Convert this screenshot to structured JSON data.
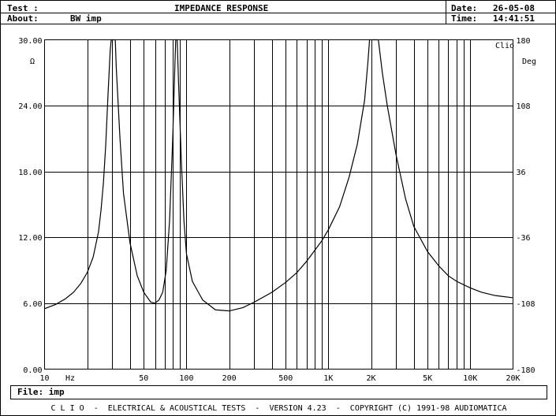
{
  "header": {
    "test_label": "Test :",
    "test_title": "IMPEDANCE RESPONSE",
    "about_label": "About:",
    "about_value": "BW imp",
    "date_label": "Date:",
    "date_value": "26-05-08",
    "time_label": "Time:",
    "time_value": "14:41:51"
  },
  "file": {
    "label": "File:",
    "value": "imp"
  },
  "footer": {
    "text": "C L I O  -  ELECTRICAL & ACOUSTICAL TESTS  -  VERSION 4.23  -  COPYRIGHT (C) 1991-98 AUDIOMATICA"
  },
  "chart_data": {
    "type": "line",
    "title": "IMPEDANCE RESPONSE",
    "brand_label": "Clio",
    "xscale": "log",
    "xlim": [
      10,
      20000
    ],
    "ylim": [
      0,
      30
    ],
    "y2lim": [
      -180,
      180
    ],
    "ylabel": "Ω",
    "y2label": "Deg",
    "xunit_label": "Hz",
    "grid": true,
    "yticks": [
      "0.00",
      "6.00",
      "12.00",
      "18.00",
      "24.00",
      "30.00"
    ],
    "y2ticks": [
      "-180",
      "-108",
      "-36",
      "36",
      "108",
      "180"
    ],
    "xticks": [
      {
        "value": 10,
        "label": "10"
      },
      {
        "value": 50,
        "label": "50"
      },
      {
        "value": 100,
        "label": "100"
      },
      {
        "value": 200,
        "label": "200"
      },
      {
        "value": 500,
        "label": "500"
      },
      {
        "value": 1000,
        "label": "1K"
      },
      {
        "value": 2000,
        "label": "2K"
      },
      {
        "value": 5000,
        "label": "5K"
      },
      {
        "value": 10000,
        "label": "10K"
      },
      {
        "value": 20000,
        "label": "20K"
      }
    ],
    "series": [
      {
        "points": [
          [
            10,
            5.5
          ],
          [
            12,
            5.9
          ],
          [
            14,
            6.4
          ],
          [
            16,
            7.0
          ],
          [
            18,
            7.8
          ],
          [
            20,
            8.8
          ],
          [
            22,
            10.2
          ],
          [
            24,
            12.5
          ],
          [
            25,
            14.5
          ],
          [
            26,
            17.0
          ],
          [
            27,
            20.5
          ],
          [
            28,
            25.0
          ],
          [
            29,
            29.0
          ],
          [
            29.5,
            30.0
          ],
          [
            31.5,
            30.0
          ],
          [
            32,
            27.5
          ],
          [
            34,
            21.0
          ],
          [
            36,
            16.0
          ],
          [
            40,
            11.5
          ],
          [
            45,
            8.5
          ],
          [
            50,
            7.0
          ],
          [
            56,
            6.1
          ],
          [
            60,
            6.0
          ],
          [
            64,
            6.3
          ],
          [
            68,
            7.0
          ],
          [
            72,
            9.0
          ],
          [
            76,
            13.5
          ],
          [
            80,
            21.0
          ],
          [
            83,
            28.0
          ],
          [
            84,
            30.0
          ],
          [
            86,
            30.0
          ],
          [
            88,
            26.0
          ],
          [
            92,
            19.0
          ],
          [
            96,
            13.5
          ],
          [
            100,
            10.5
          ],
          [
            110,
            8.0
          ],
          [
            130,
            6.3
          ],
          [
            160,
            5.4
          ],
          [
            200,
            5.3
          ],
          [
            250,
            5.6
          ],
          [
            300,
            6.1
          ],
          [
            400,
            7.0
          ],
          [
            500,
            7.9
          ],
          [
            600,
            8.8
          ],
          [
            700,
            9.8
          ],
          [
            800,
            10.8
          ],
          [
            900,
            11.7
          ],
          [
            1000,
            12.7
          ],
          [
            1200,
            14.8
          ],
          [
            1400,
            17.5
          ],
          [
            1600,
            20.5
          ],
          [
            1800,
            24.5
          ],
          [
            1900,
            28.0
          ],
          [
            1950,
            30.0
          ],
          [
            2250,
            30.0
          ],
          [
            2400,
            27.0
          ],
          [
            2600,
            24.0
          ],
          [
            3000,
            19.5
          ],
          [
            3500,
            15.5
          ],
          [
            4000,
            13.0
          ],
          [
            5000,
            10.7
          ],
          [
            6000,
            9.4
          ],
          [
            7000,
            8.5
          ],
          [
            8000,
            8.0
          ],
          [
            10000,
            7.4
          ],
          [
            12000,
            7.0
          ],
          [
            15000,
            6.7
          ],
          [
            20000,
            6.5
          ]
        ]
      }
    ]
  }
}
